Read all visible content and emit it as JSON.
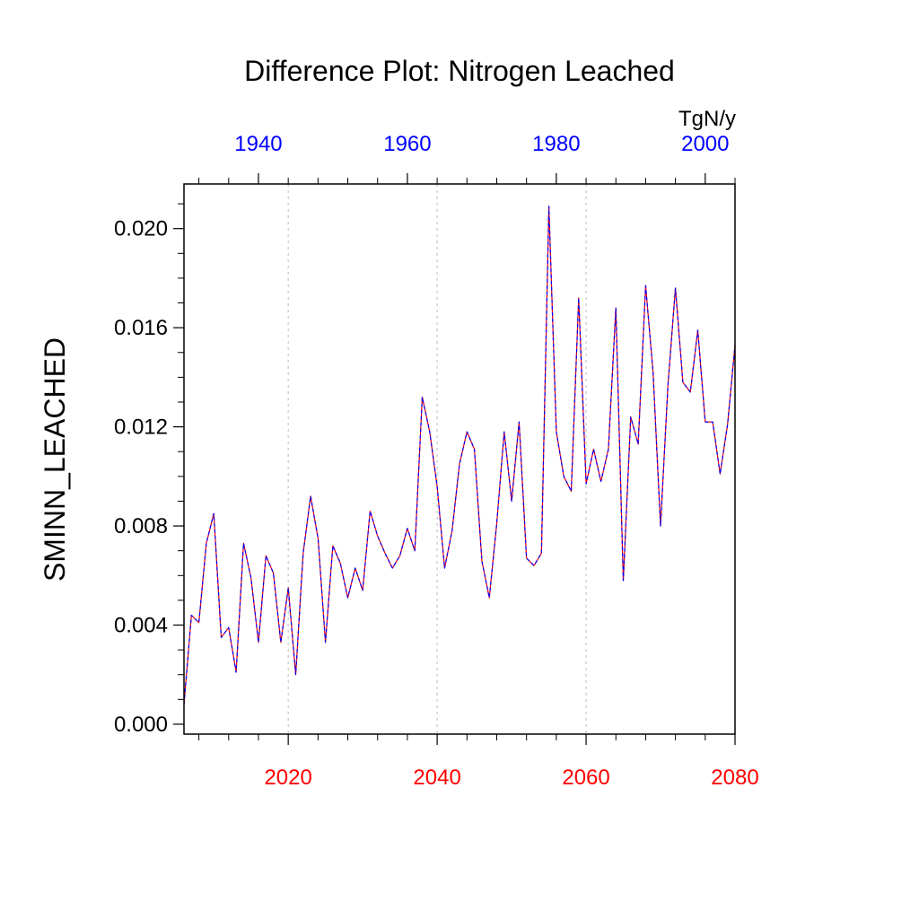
{
  "chart_data": {
    "type": "line",
    "title": "Difference Plot: Nitrogen Leached",
    "ylabel": "SMINN_LEACHED",
    "units": "TgN/y",
    "ylim": [
      -0.0004,
      0.0218
    ],
    "bottom_axis": {
      "color": "#ff0000",
      "range": [
        2006,
        2080
      ],
      "ticks": [
        2020,
        2040,
        2060,
        2080
      ]
    },
    "top_axis": {
      "color": "#0000ff",
      "range": [
        1930,
        2004
      ],
      "ticks": [
        1940,
        1960,
        1980,
        2000
      ]
    },
    "yticks": [
      "0.000",
      "0.004",
      "0.008",
      "0.012",
      "0.016",
      "0.020"
    ],
    "grid": "vertical dashed lines at bottom-axis major ticks",
    "series": [
      {
        "color_top": "#0000ff",
        "color_bottom": "#ff0000",
        "x": [
          2006,
          2007,
          2008,
          2009,
          2010,
          2011,
          2012,
          2013,
          2014,
          2015,
          2016,
          2017,
          2018,
          2019,
          2020,
          2021,
          2022,
          2023,
          2024,
          2025,
          2026,
          2027,
          2028,
          2029,
          2030,
          2031,
          2032,
          2033,
          2034,
          2035,
          2036,
          2037,
          2038,
          2039,
          2040,
          2041,
          2042,
          2043,
          2044,
          2045,
          2046,
          2047,
          2048,
          2049,
          2050,
          2051,
          2052,
          2053,
          2054,
          2055,
          2056,
          2057,
          2058,
          2059,
          2060,
          2061,
          2062,
          2063,
          2064,
          2065,
          2066,
          2067,
          2068,
          2069,
          2070,
          2071,
          2072,
          2073,
          2074,
          2075,
          2076,
          2077,
          2078,
          2079,
          2080
        ],
        "values": [
          0.0008,
          0.0044,
          0.0041,
          0.0073,
          0.0085,
          0.0035,
          0.0039,
          0.0021,
          0.0073,
          0.0059,
          0.0033,
          0.0068,
          0.0061,
          0.0033,
          0.0055,
          0.002,
          0.0069,
          0.0092,
          0.0075,
          0.0033,
          0.0072,
          0.0065,
          0.0051,
          0.0063,
          0.0054,
          0.0086,
          0.0076,
          0.0069,
          0.0063,
          0.0068,
          0.0079,
          0.007,
          0.0132,
          0.0118,
          0.0096,
          0.0063,
          0.0078,
          0.0105,
          0.0118,
          0.0111,
          0.0066,
          0.0051,
          0.0081,
          0.0118,
          0.009,
          0.0122,
          0.0067,
          0.0064,
          0.0069,
          0.0209,
          0.0118,
          0.01,
          0.0094,
          0.0172,
          0.0097,
          0.0111,
          0.0098,
          0.0111,
          0.0168,
          0.0058,
          0.0124,
          0.0113,
          0.0177,
          0.0142,
          0.008,
          0.0137,
          0.0176,
          0.0138,
          0.0134,
          0.0159,
          0.0122,
          0.0122,
          0.0101,
          0.0121,
          0.0153
        ]
      }
    ]
  }
}
